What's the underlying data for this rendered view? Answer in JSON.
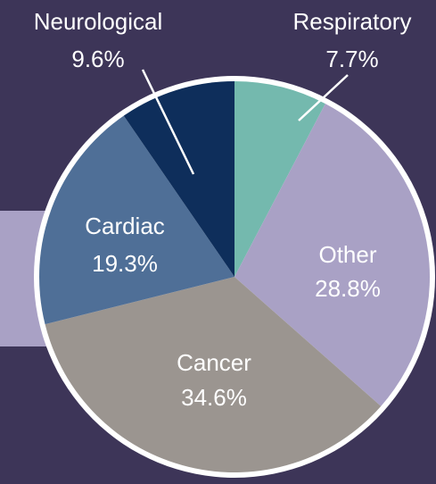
{
  "chart_data": {
    "type": "pie",
    "categories": [
      "Respiratory",
      "Other",
      "Cancer",
      "Cardiac",
      "Neurological"
    ],
    "values": [
      7.7,
      28.8,
      34.6,
      19.3,
      9.6
    ],
    "value_labels": [
      "7.7%",
      "28.8%",
      "34.6%",
      "19.3%",
      "9.6%"
    ],
    "colors": [
      "#74b9ae",
      "#a9a1c5",
      "#9b9590",
      "#4f6f97",
      "#0e2e5b"
    ]
  }
}
